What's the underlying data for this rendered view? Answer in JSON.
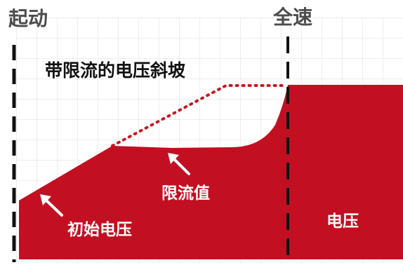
{
  "labels": {
    "start": "起动",
    "full_speed": "全速",
    "title": "带限流的电压斜坡",
    "current_limit": "限流值",
    "initial_voltage": "初始电压",
    "voltage": "电压"
  },
  "colors": {
    "area_red": "#c30f22",
    "dotted_red": "#c9151f",
    "grid_gray": "#dddddd",
    "dash_black": "#111111",
    "label_gray": "#4c4c4c",
    "title_black": "#111111",
    "label_white": "#ffffff"
  }
}
